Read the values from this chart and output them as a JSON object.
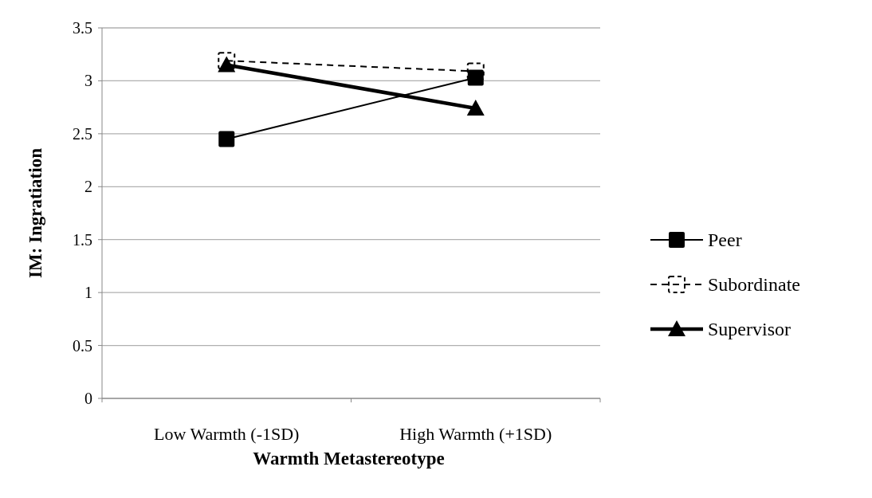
{
  "chart_data": {
    "type": "line",
    "xlabel": "Warmth Metastereotype",
    "ylabel": "IM: Ingratiation",
    "categories": [
      "Low Warmth  (-1SD)",
      "High Warmth (+1SD)"
    ],
    "ylim": [
      0,
      3.5
    ],
    "yticks": [
      0,
      0.5,
      1,
      1.5,
      2,
      2.5,
      3,
      3.5
    ],
    "grid": "y",
    "legend": "right",
    "series": [
      {
        "name": "Peer",
        "color": "#000000",
        "values": [
          2.45,
          3.03
        ],
        "marker": "square",
        "line_style": "solid"
      },
      {
        "name": "Subordinate",
        "color": "#000000",
        "values": [
          3.19,
          3.09
        ],
        "marker": "square",
        "line_style": "dashed"
      },
      {
        "name": "Supervisor",
        "color": "#000000",
        "values": [
          3.15,
          2.74
        ],
        "marker": "triangle",
        "line_style": "solid"
      }
    ]
  }
}
